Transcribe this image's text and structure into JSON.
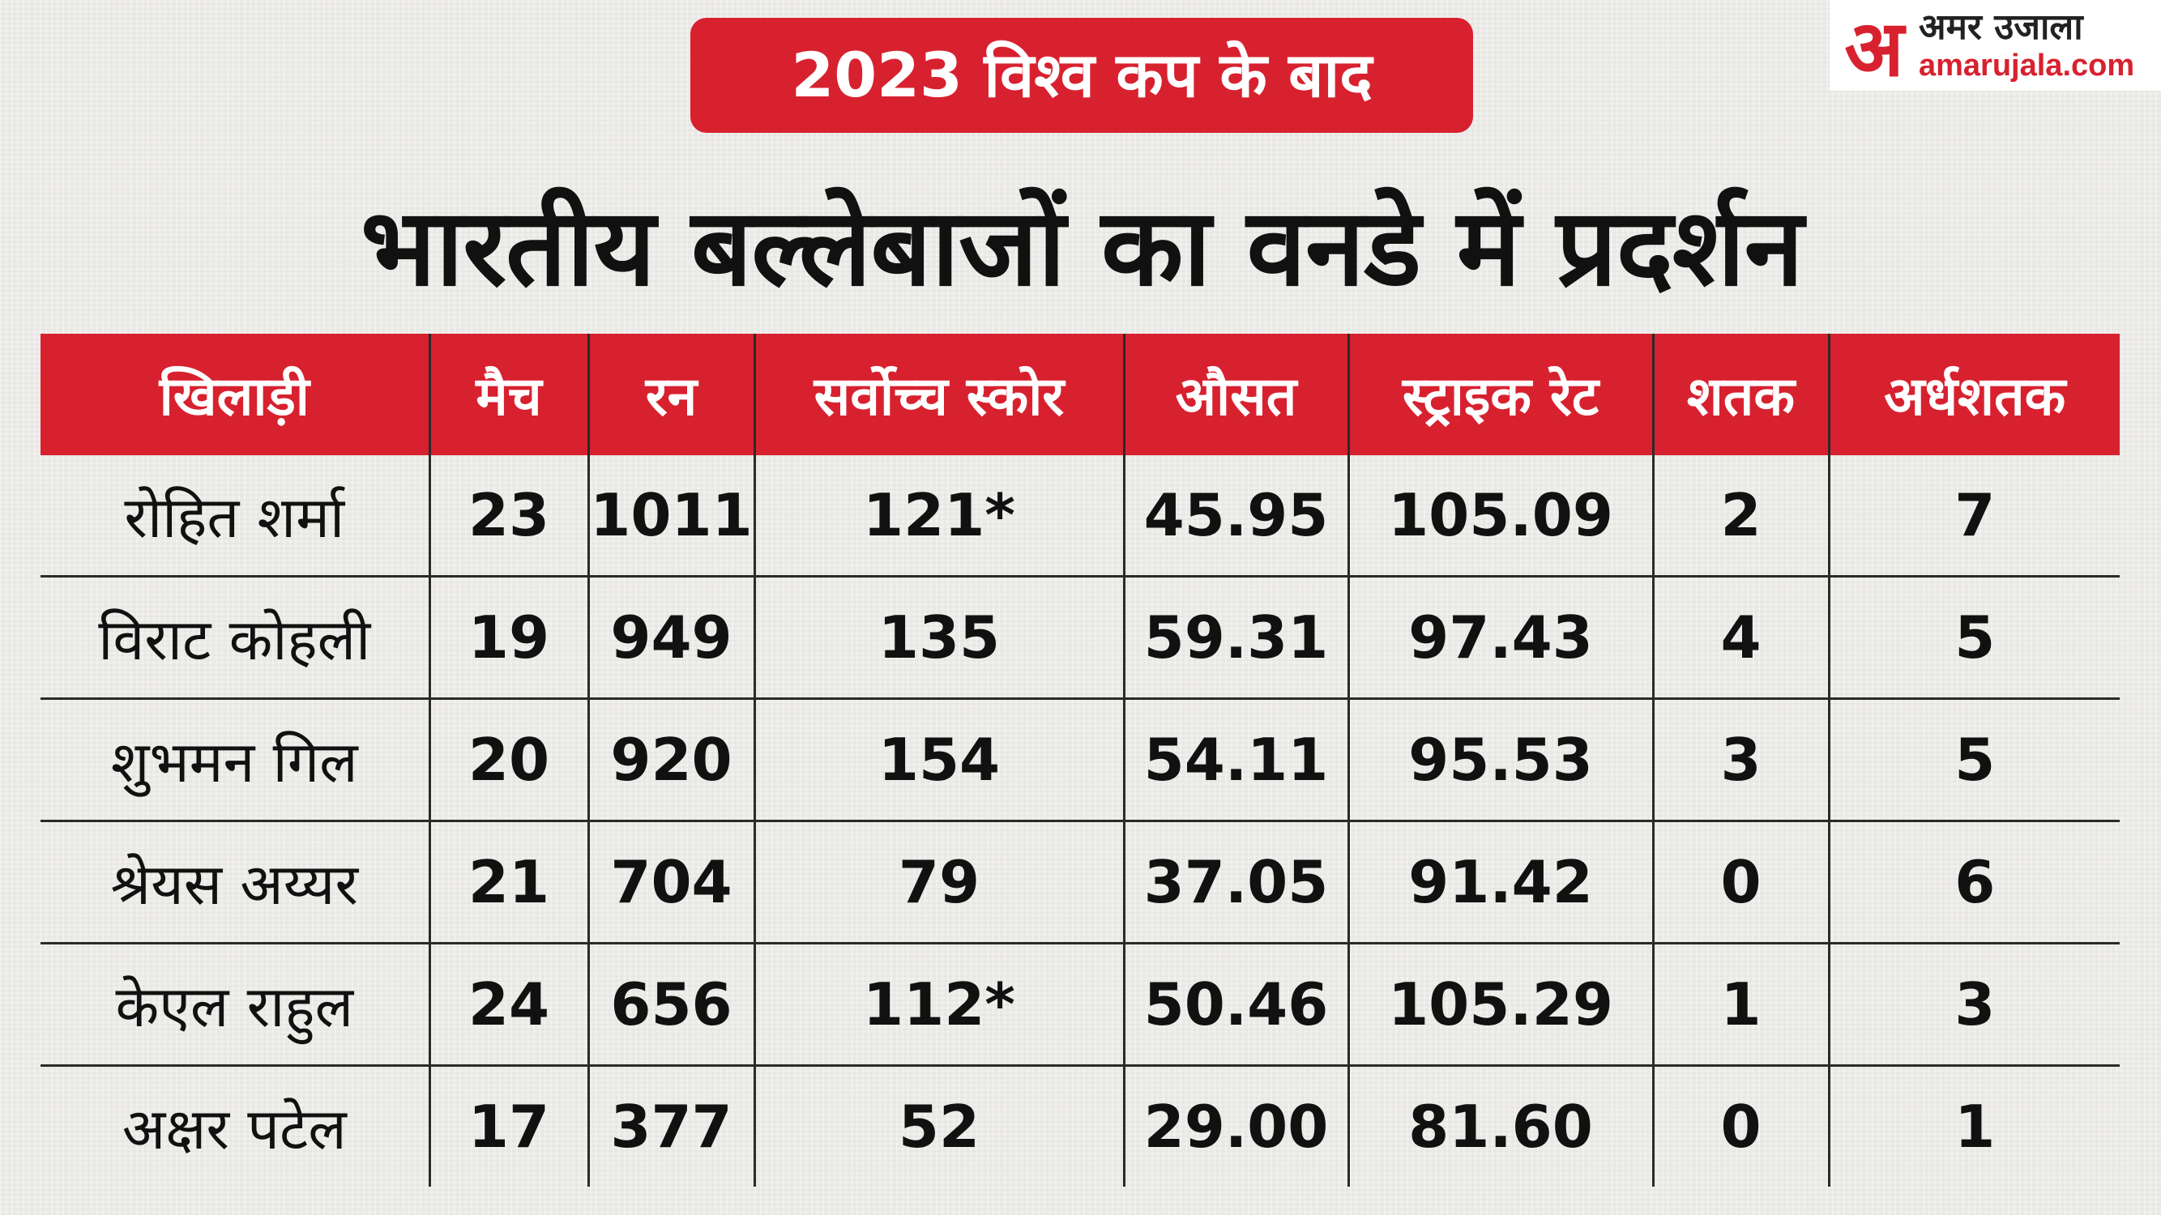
{
  "header": {
    "subtitle": "2023 विश्व कप के बाद",
    "title": "भारतीय बल्लेबाजों का वनडे में प्रदर्शन"
  },
  "logo": {
    "mark": "अ",
    "hindi": "अमर उजाला",
    "domain": "amarujala.com"
  },
  "table": {
    "headers": [
      "खिलाड़ी",
      "मैच",
      "रन",
      "सर्वोच्च स्कोर",
      "औसत",
      "स्ट्राइक रेट",
      "शतक",
      "अर्धशतक"
    ],
    "rows": [
      [
        "रोहित शर्मा",
        "23",
        "1011",
        "121*",
        "45.95",
        "105.09",
        "2",
        "7"
      ],
      [
        "विराट कोहली",
        "19",
        "949",
        "135",
        "59.31",
        "97.43",
        "4",
        "5"
      ],
      [
        "शुभमन गिल",
        "20",
        "920",
        "154",
        "54.11",
        "95.53",
        "3",
        "5"
      ],
      [
        "श्रेयस अय्यर",
        "21",
        "704",
        "79",
        "37.05",
        "91.42",
        "0",
        "6"
      ],
      [
        "केएल राहुल",
        "24",
        "656",
        "112*",
        "50.46",
        "105.29",
        "1",
        "3"
      ],
      [
        "अक्षर पटेल",
        "17",
        "377",
        "52",
        "29.00",
        "81.60",
        "0",
        "1"
      ]
    ]
  },
  "colors": {
    "accent": "#d8212f",
    "background": "#ecebe8",
    "text": "#111111"
  }
}
